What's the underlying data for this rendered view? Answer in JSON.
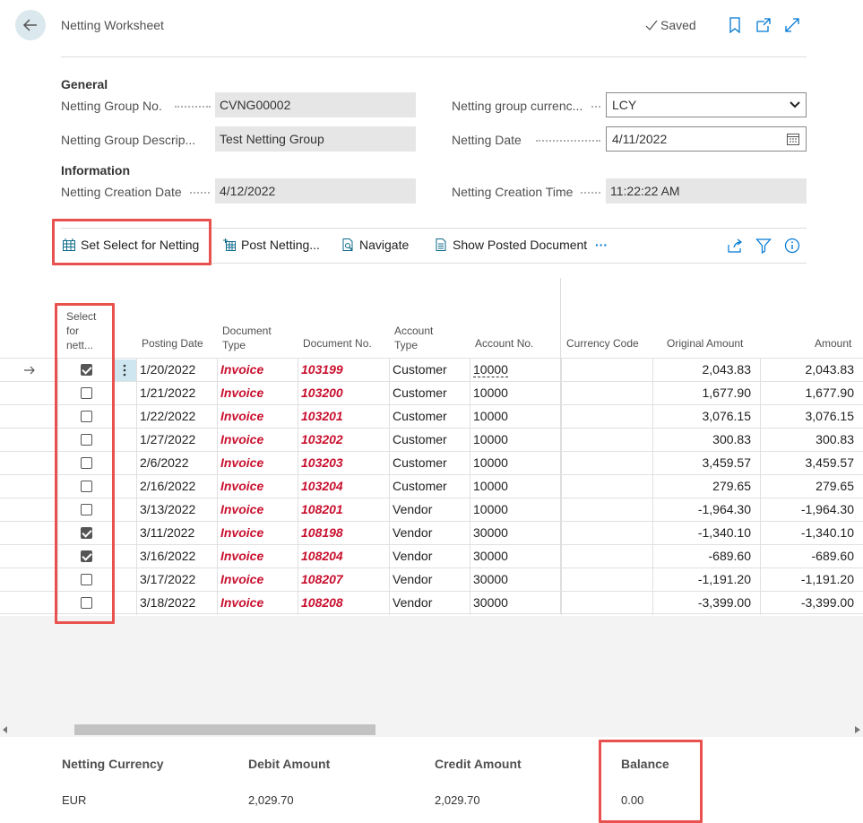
{
  "header": {
    "title": "Netting Worksheet",
    "saved": "Saved"
  },
  "general": {
    "section_title": "General",
    "group_no_label": "Netting Group No.",
    "group_no_value": "CVNG00002",
    "group_desc_label": "Netting Group Descrip...",
    "group_desc_value": "Test Netting Group",
    "currency_label": "Netting group currenc...",
    "currency_value": "LCY",
    "date_label": "Netting Date",
    "date_value": "4/11/2022"
  },
  "information": {
    "section_title": "Information",
    "creation_date_label": "Netting Creation Date",
    "creation_date_value": "4/12/2022",
    "creation_time_label": "Netting Creation Time",
    "creation_time_value": "11:22:22 AM"
  },
  "actions": {
    "set_select": "Set Select for Netting",
    "post_netting": "Post Netting...",
    "navigate": "Navigate",
    "show_posted": "Show Posted Document",
    "more": "···"
  },
  "columns": {
    "select_l1": "Select",
    "select_l2": "for",
    "select_l3": "nett...",
    "posting_date": "Posting Date",
    "doc_type_l1": "Document",
    "doc_type_l2": "Type",
    "doc_no": "Document No.",
    "acct_type_l1": "Account",
    "acct_type_l2": "Type",
    "acct_no": "Account No.",
    "currency_code": "Currency Code",
    "original_amount": "Original Amount",
    "amount": "Amount"
  },
  "rows": [
    {
      "selected": true,
      "posting_date": "1/20/2022",
      "doc_type": "Invoice",
      "doc_no": "103199",
      "acct_type": "Customer",
      "acct_no": "10000",
      "currency": "",
      "original": "2,043.83",
      "amount": "2,043.83"
    },
    {
      "selected": false,
      "posting_date": "1/21/2022",
      "doc_type": "Invoice",
      "doc_no": "103200",
      "acct_type": "Customer",
      "acct_no": "10000",
      "currency": "",
      "original": "1,677.90",
      "amount": "1,677.90"
    },
    {
      "selected": false,
      "posting_date": "1/22/2022",
      "doc_type": "Invoice",
      "doc_no": "103201",
      "acct_type": "Customer",
      "acct_no": "10000",
      "currency": "",
      "original": "3,076.15",
      "amount": "3,076.15"
    },
    {
      "selected": false,
      "posting_date": "1/27/2022",
      "doc_type": "Invoice",
      "doc_no": "103202",
      "acct_type": "Customer",
      "acct_no": "10000",
      "currency": "",
      "original": "300.83",
      "amount": "300.83"
    },
    {
      "selected": false,
      "posting_date": "2/6/2022",
      "doc_type": "Invoice",
      "doc_no": "103203",
      "acct_type": "Customer",
      "acct_no": "10000",
      "currency": "",
      "original": "3,459.57",
      "amount": "3,459.57"
    },
    {
      "selected": false,
      "posting_date": "2/16/2022",
      "doc_type": "Invoice",
      "doc_no": "103204",
      "acct_type": "Customer",
      "acct_no": "10000",
      "currency": "",
      "original": "279.65",
      "amount": "279.65"
    },
    {
      "selected": false,
      "posting_date": "3/13/2022",
      "doc_type": "Invoice",
      "doc_no": "108201",
      "acct_type": "Vendor",
      "acct_no": "10000",
      "currency": "",
      "original": "-1,964.30",
      "amount": "-1,964.30"
    },
    {
      "selected": true,
      "posting_date": "3/11/2022",
      "doc_type": "Invoice",
      "doc_no": "108198",
      "acct_type": "Vendor",
      "acct_no": "30000",
      "currency": "",
      "original": "-1,340.10",
      "amount": "-1,340.10"
    },
    {
      "selected": true,
      "posting_date": "3/16/2022",
      "doc_type": "Invoice",
      "doc_no": "108204",
      "acct_type": "Vendor",
      "acct_no": "30000",
      "currency": "",
      "original": "-689.60",
      "amount": "-689.60"
    },
    {
      "selected": false,
      "posting_date": "3/17/2022",
      "doc_type": "Invoice",
      "doc_no": "108207",
      "acct_type": "Vendor",
      "acct_no": "30000",
      "currency": "",
      "original": "-1,191.20",
      "amount": "-1,191.20"
    },
    {
      "selected": false,
      "posting_date": "3/18/2022",
      "doc_type": "Invoice",
      "doc_no": "108208",
      "acct_type": "Vendor",
      "acct_no": "30000",
      "currency": "",
      "original": "-3,399.00",
      "amount": "-3,399.00"
    }
  ],
  "footer": {
    "currency_label": "Netting Currency",
    "currency_value": "EUR",
    "debit_label": "Debit Amount",
    "debit_value": "2,029.70",
    "credit_label": "Credit Amount",
    "credit_value": "2,029.70",
    "balance_label": "Balance",
    "balance_value": "0.00"
  },
  "colors": {
    "highlight": "#e8514e",
    "invoice_text": "#c8102e",
    "accent": "#0078d4"
  }
}
